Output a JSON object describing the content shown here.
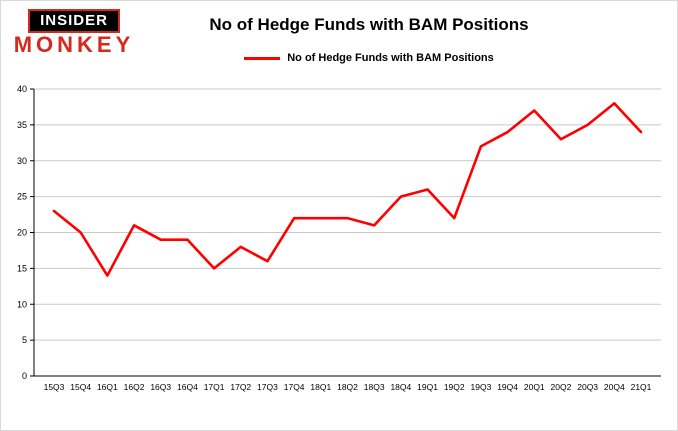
{
  "logo": {
    "line1": "INSIDER",
    "line2": "MONKEY"
  },
  "chart_data": {
    "type": "line",
    "title": "No of Hedge Funds with BAM Positions",
    "legend": "No of Hedge Funds with BAM Positions",
    "categories": [
      "15Q3",
      "15Q4",
      "16Q1",
      "16Q2",
      "16Q3",
      "16Q4",
      "17Q1",
      "17Q2",
      "17Q3",
      "17Q4",
      "18Q1",
      "18Q2",
      "18Q3",
      "18Q4",
      "19Q1",
      "19Q2",
      "19Q3",
      "19Q4",
      "20Q1",
      "20Q2",
      "20Q3",
      "20Q4",
      "21Q1"
    ],
    "values": [
      23,
      20,
      14,
      21,
      19,
      19,
      15,
      18,
      16,
      22,
      22,
      22,
      21,
      25,
      26,
      22,
      32,
      34,
      37,
      33,
      35,
      38,
      34
    ],
    "ylim": [
      0,
      40
    ],
    "yticks": [
      0,
      5,
      10,
      15,
      20,
      25,
      30,
      35,
      40
    ],
    "line_color": "#ff0000",
    "grid_color": "#c9c9c9",
    "axis_color": "#000000",
    "grid": true,
    "legend_position": "top"
  }
}
